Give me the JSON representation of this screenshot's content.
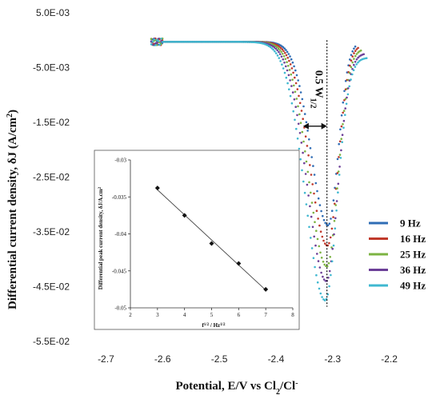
{
  "chart_data": [
    {
      "type": "scatter",
      "title": "",
      "xlabel": "Potential, E/V vs Cl",
      "xlabel_sub": "2",
      "xlabel_end": "/Cl",
      "xlabel_sup": "-",
      "ylabel": "Differential current density, δJ (A/cm",
      "ylabel_sup": "2",
      "ylabel_end": ")",
      "xlim": [
        -2.75,
        -2.15
      ],
      "ylim": [
        -0.055,
        0.005
      ],
      "xticks": [
        -2.7,
        -2.6,
        -2.5,
        -2.4,
        -2.3,
        -2.2
      ],
      "xtick_labels": [
        "-2.7",
        "-2.6",
        "-2.5",
        "-2.4",
        "-2.3",
        "-2.2"
      ],
      "yticks": [
        0.005,
        -0.005,
        -0.015,
        -0.025,
        -0.035,
        -0.045,
        -0.055
      ],
      "ytick_labels": [
        "5.0E-03",
        "-5.0E-03",
        "-1.5E-02",
        "-2.5E-02",
        "-3.5E-02",
        "-4.5E-02",
        "-5.5E-02"
      ],
      "grid": false,
      "legend_position": "right",
      "series": [
        {
          "name": "9 Hz",
          "color": "#2f6db5",
          "peak_x": -2.308,
          "peak_y": -0.0338,
          "width": 0.05,
          "start_x": -2.62,
          "end_x": -2.26,
          "tail_y": -0.0003
        },
        {
          "name": "16 Hz",
          "color": "#c0392b",
          "peak_x": -2.309,
          "peak_y": -0.0375,
          "width": 0.052,
          "start_x": -2.62,
          "end_x": -2.255,
          "tail_y": -0.0009
        },
        {
          "name": "25 Hz",
          "color": "#7cb342",
          "peak_x": -2.31,
          "peak_y": -0.0413,
          "width": 0.054,
          "start_x": -2.62,
          "end_x": -2.25,
          "tail_y": -0.0016
        },
        {
          "name": "36 Hz",
          "color": "#6c3f98",
          "peak_x": -2.311,
          "peak_y": -0.044,
          "width": 0.056,
          "start_x": -2.62,
          "end_x": -2.245,
          "tail_y": -0.0024
        },
        {
          "name": "49 Hz",
          "color": "#3fb8d0",
          "peak_x": -2.313,
          "peak_y": -0.0475,
          "width": 0.058,
          "start_x": -2.62,
          "end_x": -2.24,
          "tail_y": -0.0032
        }
      ],
      "annotations": {
        "vline_x": -2.31,
        "width_label": "0.5 W",
        "width_label_sub": "1/2"
      }
    },
    {
      "type": "line",
      "title": "",
      "xlabel": "f",
      "xlabel_sup1": "1/2",
      "xlabel_mid": " / Hz",
      "xlabel_sup2": "1/2",
      "ylabel": "Differential peak current density, δJ/A.cm",
      "ylabel_sup": "2",
      "xlim": [
        2,
        8
      ],
      "ylim": [
        -0.05,
        -0.03
      ],
      "xticks": [
        2,
        3,
        4,
        5,
        6,
        7,
        8
      ],
      "xtick_labels": [
        "2",
        "3",
        "4",
        "5",
        "6",
        "7",
        "8"
      ],
      "yticks": [
        -0.03,
        -0.035,
        -0.04,
        -0.045,
        -0.05
      ],
      "ytick_labels": [
        "-0.03",
        "-0.035",
        "-0.04",
        "-0.045",
        "-0.05"
      ],
      "x": [
        3,
        4,
        5,
        6,
        7
      ],
      "y": [
        -0.0338,
        -0.0375,
        -0.0413,
        -0.044,
        -0.0475
      ]
    }
  ]
}
